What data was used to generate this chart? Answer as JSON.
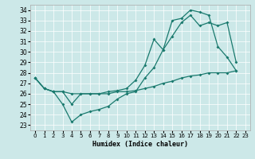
{
  "xlabel": "Humidex (Indice chaleur)",
  "xlim": [
    -0.5,
    23.5
  ],
  "ylim": [
    22.5,
    34.5
  ],
  "yticks": [
    23,
    24,
    25,
    26,
    27,
    28,
    29,
    30,
    31,
    32,
    33,
    34
  ],
  "xticks": [
    0,
    1,
    2,
    3,
    4,
    5,
    6,
    7,
    8,
    9,
    10,
    11,
    12,
    13,
    14,
    15,
    16,
    17,
    18,
    19,
    20,
    21,
    22,
    23
  ],
  "bg_color": "#cce8e8",
  "line_color": "#1a7a6e",
  "line1_x": [
    0,
    1,
    2,
    3,
    4,
    5,
    6,
    7,
    8,
    9,
    10,
    11,
    12,
    13,
    14,
    15,
    16,
    17,
    18,
    19,
    20,
    21,
    22
  ],
  "line1_y": [
    27.5,
    26.5,
    26.2,
    26.2,
    25.0,
    26.0,
    26.0,
    26.0,
    26.2,
    26.3,
    26.5,
    27.3,
    28.7,
    31.2,
    30.2,
    33.0,
    33.2,
    34.0,
    33.8,
    33.5,
    30.5,
    29.5,
    28.2
  ],
  "line2_x": [
    0,
    1,
    2,
    3,
    4,
    5,
    6,
    7,
    8,
    9,
    10,
    11,
    12,
    13,
    14,
    15,
    16,
    17,
    18,
    19,
    20,
    21,
    22
  ],
  "line2_y": [
    27.5,
    26.5,
    26.2,
    25.0,
    23.3,
    24.0,
    24.3,
    24.5,
    24.8,
    25.5,
    26.0,
    26.2,
    27.5,
    28.5,
    30.2,
    31.5,
    32.8,
    33.5,
    32.5,
    32.8,
    32.5,
    32.8,
    29.0
  ],
  "line3_x": [
    0,
    1,
    2,
    3,
    4,
    5,
    6,
    7,
    8,
    9,
    10,
    11,
    12,
    13,
    14,
    15,
    16,
    17,
    18,
    19,
    20,
    21,
    22
  ],
  "line3_y": [
    27.5,
    26.5,
    26.2,
    26.2,
    26.0,
    26.0,
    26.0,
    26.0,
    26.0,
    26.2,
    26.2,
    26.3,
    26.5,
    26.7,
    27.0,
    27.2,
    27.5,
    27.7,
    27.8,
    28.0,
    28.0,
    28.0,
    28.2
  ]
}
